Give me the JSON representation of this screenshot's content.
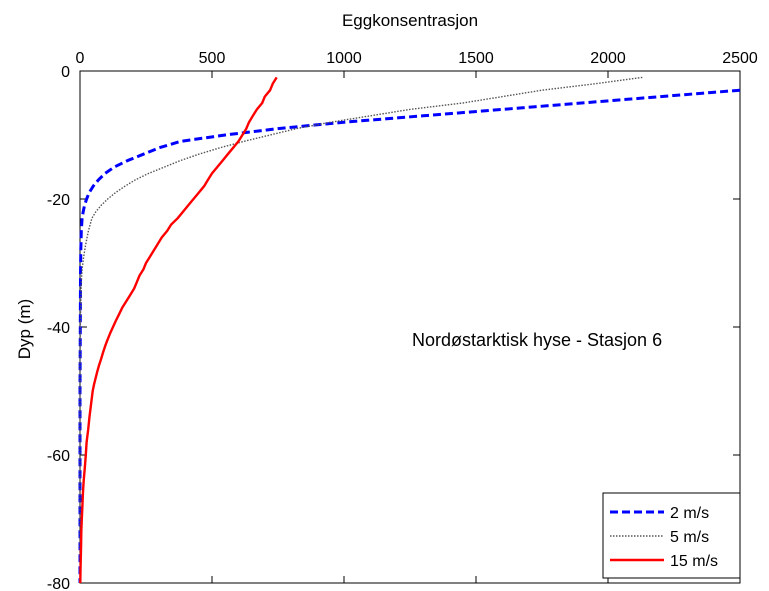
{
  "chart_data": {
    "type": "line",
    "xlabel": "Eggkonsentrasjon",
    "ylabel": "Dyp (m)",
    "annotation": "Nordøstarktisk hyse - Stasjon 6",
    "xlim": [
      0,
      2500
    ],
    "ylim": [
      -80,
      0
    ],
    "x_axis_position": "top",
    "xticks": [
      0,
      500,
      1000,
      1500,
      2000,
      2500
    ],
    "yticks": [
      0,
      -20,
      -40,
      -60,
      -80
    ],
    "grid": false,
    "legend_position": "bottom-right",
    "series": [
      {
        "name": "2 m/s",
        "color": "#0000ff",
        "style": "dashed",
        "points": [
          [
            2500,
            -3
          ],
          [
            2200,
            -4
          ],
          [
            1900,
            -5
          ],
          [
            1600,
            -6
          ],
          [
            1300,
            -7
          ],
          [
            1000,
            -8
          ],
          [
            750,
            -9
          ],
          [
            550,
            -10
          ],
          [
            380,
            -11
          ],
          [
            300,
            -12
          ],
          [
            240,
            -13
          ],
          [
            180,
            -14
          ],
          [
            130,
            -15
          ],
          [
            95,
            -16
          ],
          [
            70,
            -17
          ],
          [
            50,
            -18
          ],
          [
            35,
            -19
          ],
          [
            25,
            -20
          ],
          [
            17,
            -21
          ],
          [
            12,
            -22
          ],
          [
            8,
            -23
          ],
          [
            5,
            -25
          ],
          [
            3,
            -28
          ],
          [
            2,
            -32
          ],
          [
            1,
            -40
          ],
          [
            0,
            -50
          ],
          [
            0,
            -80
          ]
        ]
      },
      {
        "name": "5 m/s",
        "color": "#555555",
        "style": "dotted",
        "points": [
          [
            2130,
            -1
          ],
          [
            1950,
            -2
          ],
          [
            1750,
            -3
          ],
          [
            1600,
            -4
          ],
          [
            1450,
            -5
          ],
          [
            1250,
            -6
          ],
          [
            1100,
            -7
          ],
          [
            950,
            -8
          ],
          [
            820,
            -9
          ],
          [
            720,
            -10
          ],
          [
            620,
            -11
          ],
          [
            530,
            -12
          ],
          [
            450,
            -13
          ],
          [
            380,
            -14
          ],
          [
            320,
            -15
          ],
          [
            260,
            -16
          ],
          [
            210,
            -17
          ],
          [
            170,
            -18
          ],
          [
            135,
            -19
          ],
          [
            105,
            -20
          ],
          [
            80,
            -21
          ],
          [
            60,
            -22
          ],
          [
            45,
            -23
          ],
          [
            32,
            -25
          ],
          [
            22,
            -27
          ],
          [
            14,
            -29
          ],
          [
            8,
            -31
          ],
          [
            5,
            -33
          ],
          [
            3,
            -36
          ],
          [
            1,
            -40
          ],
          [
            0,
            -45
          ],
          [
            0,
            -80
          ]
        ]
      },
      {
        "name": "15 m/s",
        "color": "#ff0000",
        "style": "solid",
        "points": [
          [
            745,
            -1
          ],
          [
            730,
            -2
          ],
          [
            720,
            -3
          ],
          [
            700,
            -4
          ],
          [
            690,
            -5
          ],
          [
            670,
            -6
          ],
          [
            655,
            -7
          ],
          [
            640,
            -8
          ],
          [
            630,
            -9
          ],
          [
            615,
            -10
          ],
          [
            600,
            -11
          ],
          [
            580,
            -12
          ],
          [
            560,
            -13
          ],
          [
            540,
            -14
          ],
          [
            520,
            -15
          ],
          [
            500,
            -16
          ],
          [
            485,
            -17
          ],
          [
            470,
            -18
          ],
          [
            450,
            -19
          ],
          [
            430,
            -20
          ],
          [
            410,
            -21
          ],
          [
            390,
            -22
          ],
          [
            370,
            -23
          ],
          [
            345,
            -24
          ],
          [
            330,
            -25
          ],
          [
            310,
            -26
          ],
          [
            295,
            -27
          ],
          [
            280,
            -28
          ],
          [
            265,
            -29
          ],
          [
            250,
            -30
          ],
          [
            240,
            -31
          ],
          [
            225,
            -32
          ],
          [
            215,
            -33
          ],
          [
            205,
            -34
          ],
          [
            190,
            -35
          ],
          [
            175,
            -36
          ],
          [
            160,
            -37
          ],
          [
            148,
            -38
          ],
          [
            136,
            -39
          ],
          [
            125,
            -40
          ],
          [
            114,
            -41
          ],
          [
            104,
            -42
          ],
          [
            95,
            -43
          ],
          [
            87,
            -44
          ],
          [
            80,
            -45
          ],
          [
            72,
            -46
          ],
          [
            65,
            -47
          ],
          [
            59,
            -48
          ],
          [
            53,
            -49
          ],
          [
            48,
            -50
          ],
          [
            42,
            -52
          ],
          [
            36,
            -54
          ],
          [
            31,
            -56
          ],
          [
            25,
            -58
          ],
          [
            22,
            -60
          ],
          [
            18,
            -62
          ],
          [
            14,
            -64
          ],
          [
            11,
            -66
          ],
          [
            9,
            -68
          ],
          [
            7,
            -70
          ],
          [
            5,
            -72
          ],
          [
            4,
            -74
          ],
          [
            3,
            -76
          ],
          [
            2,
            -78
          ],
          [
            1,
            -80
          ]
        ]
      }
    ]
  }
}
